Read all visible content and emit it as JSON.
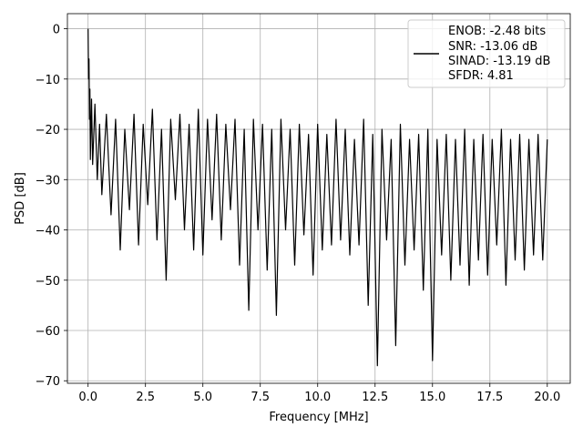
{
  "chart_data": {
    "type": "line",
    "title": "",
    "xlabel": "Frequency [MHz]",
    "ylabel": "PSD [dB]",
    "xlim": [
      -0.9,
      21.0
    ],
    "ylim": [
      -70.5,
      3.0
    ],
    "xticks": [
      0.0,
      2.5,
      5.0,
      7.5,
      10.0,
      12.5,
      15.0,
      17.5,
      20.0
    ],
    "xtick_labels": [
      "0.0",
      "2.5",
      "5.0",
      "7.5",
      "10.0",
      "12.5",
      "15.0",
      "17.5",
      "20.0"
    ],
    "yticks": [
      0,
      -10,
      -20,
      -30,
      -40,
      -50,
      -60,
      -70
    ],
    "ytick_labels": [
      "0",
      "−10",
      "−20",
      "−30",
      "−40",
      "−50",
      "−60",
      "−70"
    ],
    "grid": true,
    "legend_position": "top-right",
    "series": [
      {
        "color": "#000000",
        "description_of_trend": "dense noisy spectrum, peak 0 dB at 0 MHz, decaying to noise floor between about -20 and -40 dB with occasional dips down to about -67 dB",
        "x": [
          0.0,
          0.02,
          0.04,
          0.06,
          0.08,
          0.1,
          0.15,
          0.2,
          0.3,
          0.4,
          0.5,
          0.6,
          0.8,
          1.0,
          1.2,
          1.4,
          1.6,
          1.8,
          2.0,
          2.2,
          2.4,
          2.6,
          2.8,
          3.0,
          3.2,
          3.4,
          3.6,
          3.8,
          4.0,
          4.2,
          4.4,
          4.6,
          4.8,
          5.0,
          5.2,
          5.4,
          5.6,
          5.8,
          6.0,
          6.2,
          6.4,
          6.6,
          6.8,
          7.0,
          7.2,
          7.4,
          7.6,
          7.8,
          8.0,
          8.2,
          8.4,
          8.6,
          8.8,
          9.0,
          9.2,
          9.4,
          9.6,
          9.8,
          10.0,
          10.2,
          10.4,
          10.6,
          10.8,
          11.0,
          11.2,
          11.4,
          11.6,
          11.8,
          12.0,
          12.2,
          12.4,
          12.6,
          12.8,
          13.0,
          13.2,
          13.4,
          13.6,
          13.8,
          14.0,
          14.2,
          14.4,
          14.6,
          14.8,
          15.0,
          15.2,
          15.4,
          15.6,
          15.8,
          16.0,
          16.2,
          16.4,
          16.6,
          16.8,
          17.0,
          17.2,
          17.4,
          17.6,
          17.8,
          18.0,
          18.2,
          18.4,
          18.6,
          18.8,
          19.0,
          19.2,
          19.4,
          19.6,
          19.8,
          20.0
        ],
        "y": [
          0.0,
          -10.0,
          -6.0,
          -18.0,
          -12.0,
          -26.0,
          -14.0,
          -27.0,
          -15.0,
          -30.0,
          -19.0,
          -33.0,
          -17.0,
          -37.0,
          -18.0,
          -44.0,
          -20.0,
          -36.0,
          -17.0,
          -43.0,
          -19.0,
          -35.0,
          -16.0,
          -42.0,
          -20.0,
          -50.0,
          -18.0,
          -34.0,
          -17.0,
          -40.0,
          -19.0,
          -44.0,
          -16.0,
          -45.0,
          -18.0,
          -38.0,
          -17.0,
          -42.0,
          -19.0,
          -36.0,
          -18.0,
          -47.0,
          -20.0,
          -56.0,
          -18.0,
          -40.0,
          -19.0,
          -48.0,
          -20.0,
          -57.0,
          -18.0,
          -40.0,
          -20.0,
          -47.0,
          -19.0,
          -41.0,
          -21.0,
          -49.0,
          -19.0,
          -44.0,
          -21.0,
          -43.0,
          -18.0,
          -42.0,
          -20.0,
          -45.0,
          -22.0,
          -43.0,
          -18.0,
          -55.0,
          -21.0,
          -67.0,
          -20.0,
          -42.0,
          -22.0,
          -63.0,
          -19.0,
          -47.0,
          -22.0,
          -44.0,
          -21.0,
          -52.0,
          -20.0,
          -66.0,
          -22.0,
          -45.0,
          -21.0,
          -50.0,
          -22.0,
          -47.0,
          -20.0,
          -51.0,
          -22.0,
          -46.0,
          -21.0,
          -49.0,
          -22.0,
          -43.0,
          -20.0,
          -51.0,
          -22.0,
          -46.0,
          -21.0,
          -48.0,
          -22.0,
          -45.0,
          -21.0,
          -46.0,
          -22.0
        ]
      }
    ],
    "legend_lines": [
      "ENOB: -2.48 bits",
      "SNR: -13.06 dB",
      "SINAD: -13.19 dB",
      "SFDR: 4.81"
    ]
  }
}
